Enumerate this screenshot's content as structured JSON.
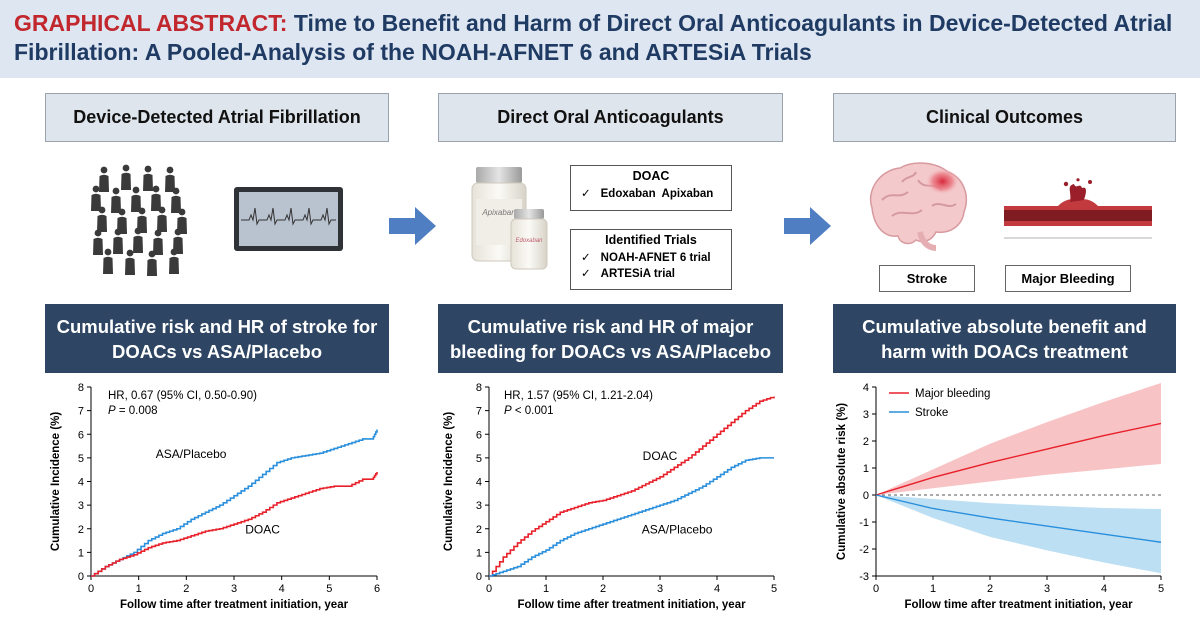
{
  "header": {
    "lead": "GRAPHICAL ABSTRACT:",
    "title": "Time to Benefit and Harm of Direct Oral Anticoagulants in Device-Detected Atrial Fibrillation: A Pooled-Analysis of the NOAH-AFNET 6 and ARTESiA Trials"
  },
  "panels": {
    "left_label": "Device-Detected Atrial Fibrillation",
    "mid_label": "Direct Oral Anticoagulants",
    "right_label": "Clinical Outcomes"
  },
  "doac_box": {
    "title": "DOAC",
    "check": "✓",
    "items": [
      "Edoxaban  Apixaban"
    ]
  },
  "trials_box": {
    "title": "Identified Trials",
    "check": "✓",
    "items": [
      "NOAH-AFNET 6 trial",
      "ARTESiA trial"
    ]
  },
  "bottle_labels": {
    "large": "Apixaban",
    "small": "Edoxaban"
  },
  "outcomes": {
    "stroke": "Stroke",
    "bleeding": "Major Bleeding"
  },
  "sections": {
    "stroke": "Cumulative risk and HR of stroke for DOACs vs ASA/Placebo",
    "bleeding": "Cumulative risk and HR of major bleeding for DOACs vs ASA/Placebo",
    "net": "Cumulative absolute benefit and harm with DOACs treatment"
  },
  "colors": {
    "doac_red": "#e8202a",
    "asa_blue": "#2a8fdc",
    "bleed_band": "#f7c3c5",
    "stroke_band": "#bcdff3",
    "title_navy": "#1f3b63",
    "title_red": "#c1272d",
    "banner": "#2e4663",
    "arrow": "#4f7fc2"
  },
  "icons": {
    "crowd": "people-crowd-icon",
    "monitor": "ecg-monitor-icon",
    "bottles": "pill-bottles-icon",
    "brain": "brain-icon",
    "vessel": "bleeding-vessel-icon",
    "arrow": "right-arrow-icon"
  },
  "chart_data": [
    {
      "type": "line",
      "xlabel": "Follow time after treatment initiation, year",
      "ylabel": "Cumulative Incidence (%)",
      "xlim": [
        0,
        6
      ],
      "ylim": [
        0,
        8
      ],
      "xticks": [
        "0",
        "1",
        "2",
        "3",
        "4",
        "5",
        "6"
      ],
      "yticks": [
        "0",
        "1",
        "2",
        "3",
        "4",
        "5",
        "6",
        "7",
        "8"
      ],
      "stat1": "HR, 0.67 (95% CI, 0.50-0.90)",
      "stat_p": "P",
      "stat2": " = 0.008",
      "series": [
        {
          "name": "ASA/Placebo",
          "x": [
            0,
            0.3,
            0.6,
            0.9,
            1.2,
            1.5,
            1.8,
            2.1,
            2.4,
            2.7,
            3.0,
            3.3,
            3.6,
            3.9,
            4.2,
            4.5,
            4.8,
            5.1,
            5.4,
            5.7,
            5.9,
            6.0
          ],
          "y": [
            0,
            0.4,
            0.7,
            1.0,
            1.5,
            1.8,
            2.0,
            2.4,
            2.7,
            3.0,
            3.4,
            3.8,
            4.3,
            4.8,
            5.0,
            5.1,
            5.2,
            5.4,
            5.6,
            5.8,
            5.8,
            6.2
          ]
        },
        {
          "name": "DOAC",
          "x": [
            0,
            0.3,
            0.6,
            0.9,
            1.2,
            1.5,
            1.8,
            2.1,
            2.4,
            2.7,
            3.0,
            3.3,
            3.6,
            3.9,
            4.2,
            4.5,
            4.8,
            5.1,
            5.4,
            5.7,
            5.9,
            6.0
          ],
          "y": [
            0,
            0.4,
            0.7,
            0.9,
            1.2,
            1.4,
            1.5,
            1.7,
            1.9,
            2.0,
            2.2,
            2.4,
            2.7,
            3.1,
            3.3,
            3.5,
            3.7,
            3.8,
            3.8,
            4.1,
            4.1,
            4.4
          ]
        }
      ]
    },
    {
      "type": "line",
      "xlabel": "Follow time after treatment initiation, year",
      "ylabel": "Cumulative Incidence (%)",
      "xlim": [
        0,
        5
      ],
      "ylim": [
        0,
        8
      ],
      "xticks": [
        "0",
        "1",
        "2",
        "3",
        "4",
        "5"
      ],
      "yticks": [
        "0",
        "1",
        "2",
        "3",
        "4",
        "5",
        "6",
        "7",
        "8"
      ],
      "stat1": "HR, 1.57 (95% CI, 1.21-2.04)",
      "stat_p": "P",
      "stat2": " < 0.001",
      "series": [
        {
          "name": "DOAC",
          "x": [
            0,
            0.25,
            0.5,
            0.75,
            1.0,
            1.25,
            1.5,
            1.75,
            2.0,
            2.25,
            2.5,
            2.75,
            3.0,
            3.25,
            3.5,
            3.75,
            4.0,
            4.25,
            4.5,
            4.75,
            5.0
          ],
          "y": [
            0,
            0.8,
            1.4,
            1.9,
            2.3,
            2.7,
            2.9,
            3.1,
            3.2,
            3.4,
            3.6,
            3.9,
            4.2,
            4.6,
            5.0,
            5.5,
            6.0,
            6.5,
            7.0,
            7.4,
            7.6
          ]
        },
        {
          "name": "ASA/Placebo",
          "x": [
            0,
            0.25,
            0.5,
            0.75,
            1.0,
            1.25,
            1.5,
            1.75,
            2.0,
            2.25,
            2.5,
            2.75,
            3.0,
            3.25,
            3.5,
            3.75,
            4.0,
            4.25,
            4.5,
            4.75,
            5.0
          ],
          "y": [
            0,
            0.2,
            0.4,
            0.8,
            1.1,
            1.5,
            1.8,
            2.0,
            2.2,
            2.4,
            2.6,
            2.8,
            3.0,
            3.2,
            3.5,
            3.8,
            4.2,
            4.6,
            4.9,
            5.0,
            5.0
          ]
        }
      ]
    },
    {
      "type": "area",
      "xlabel": "Follow time after treatment initiation, year",
      "ylabel": "Cumulative absolute risk (%)",
      "xlim": [
        0,
        5
      ],
      "ylim": [
        -3,
        4
      ],
      "xticks": [
        "0",
        "1",
        "2",
        "3",
        "4",
        "5"
      ],
      "yticks": [
        "-3",
        "-2",
        "-1",
        "0",
        "1",
        "2",
        "3",
        "4"
      ],
      "legend": "top-left",
      "series": [
        {
          "name": "Major bleeding",
          "x": [
            0,
            1,
            2,
            3,
            4,
            5
          ],
          "y": [
            0,
            0.65,
            1.2,
            1.7,
            2.2,
            2.65
          ],
          "lower": [
            0,
            0.25,
            0.5,
            0.75,
            0.95,
            1.15
          ],
          "upper": [
            0,
            0.95,
            1.9,
            2.7,
            3.45,
            4.15
          ]
        },
        {
          "name": "Stroke",
          "x": [
            0,
            1,
            2,
            3,
            4,
            5
          ],
          "y": [
            0,
            -0.5,
            -0.85,
            -1.15,
            -1.45,
            -1.75
          ],
          "lower": [
            0,
            -0.85,
            -1.55,
            -2.05,
            -2.5,
            -2.9
          ],
          "upper": [
            0,
            -0.15,
            -0.3,
            -0.4,
            -0.48,
            -0.52
          ]
        }
      ]
    }
  ]
}
